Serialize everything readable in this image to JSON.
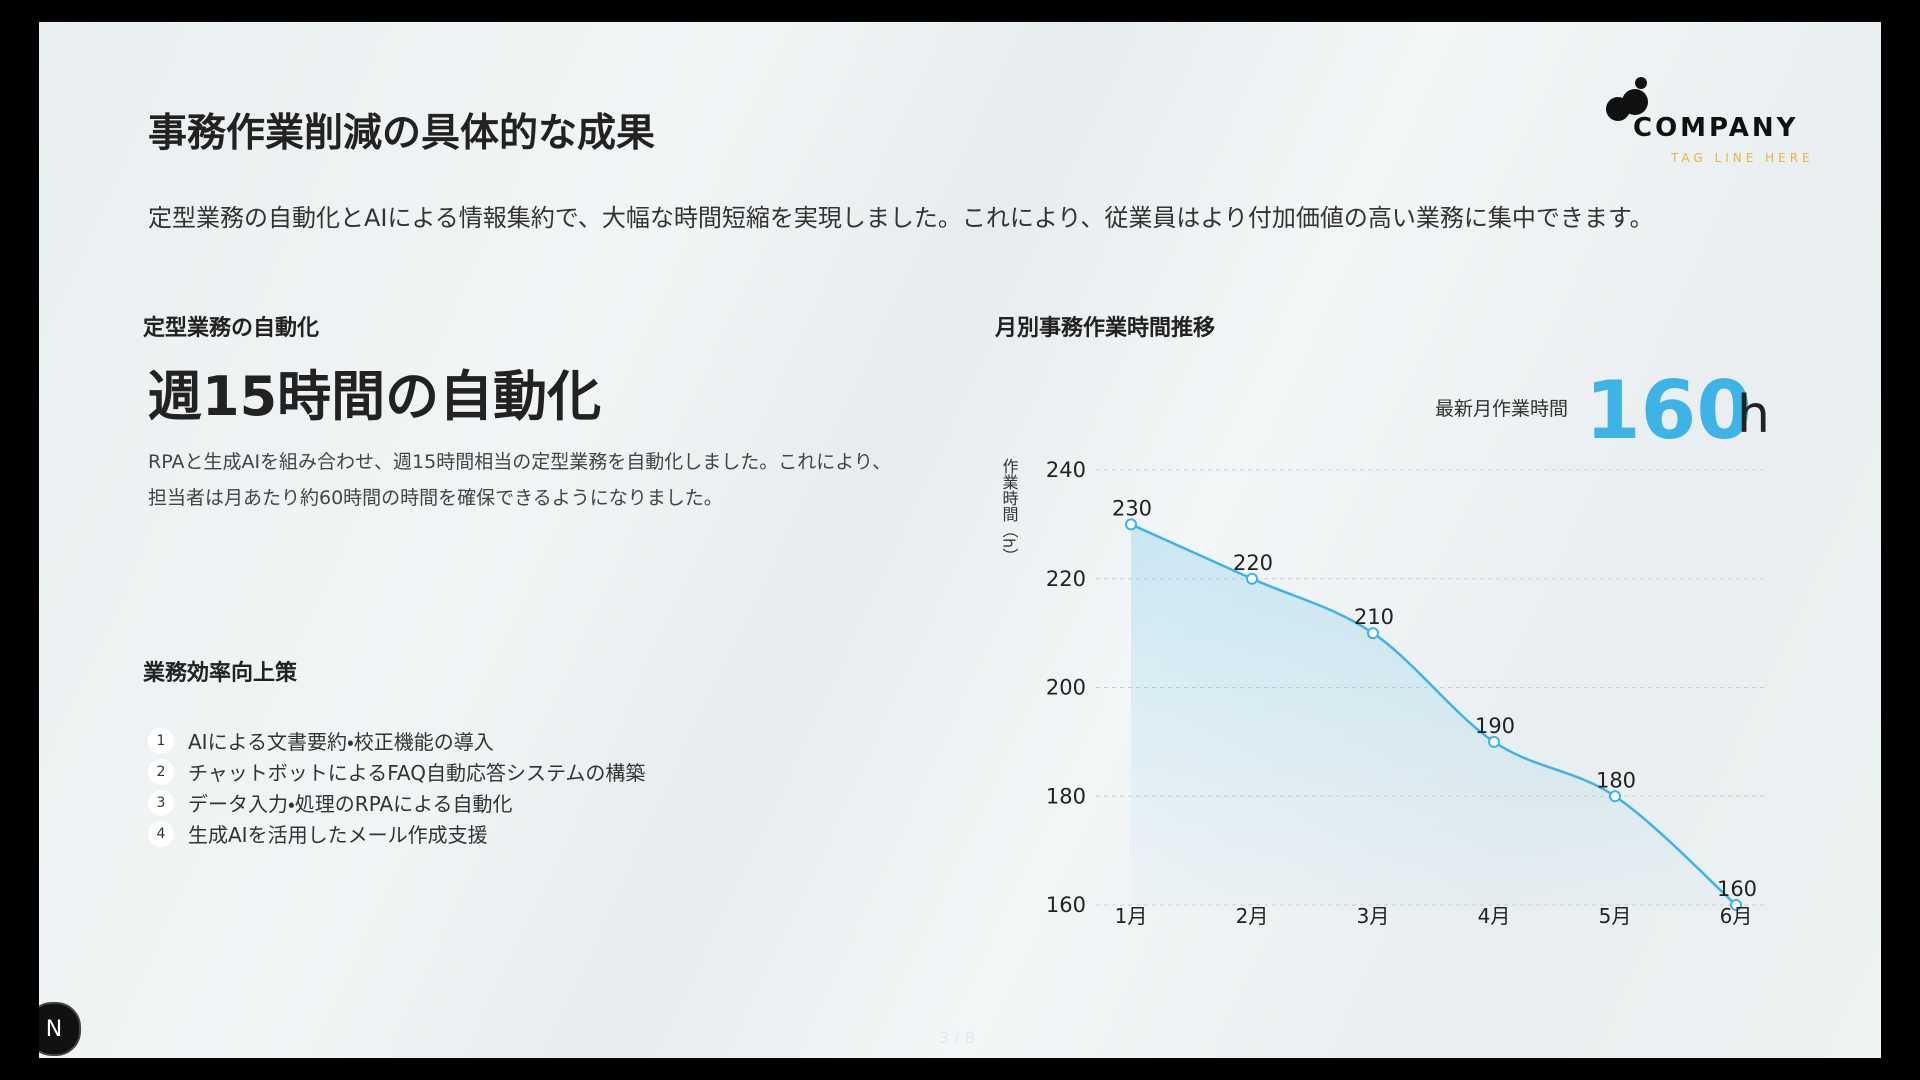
{
  "header": {
    "title": "事務作業削減の具体的な成果",
    "subtitle": "定型業務の自動化とAIによる情報集約で、大幅な時間短縮を実現しました。これにより、従業員はより付加価値の高い業務に集中できます。"
  },
  "logo": {
    "name": "COMPANY",
    "tagline": "TAG LINE HERE"
  },
  "automation": {
    "heading": "定型業務の自動化",
    "headline": "週15時間の自動化",
    "body": [
      "RPAと生成AIを組み合わせ、週15時間相当の定型業務を自動化しました。これにより、",
      "担当者は月あたり約60時間の時間を確保できるようになりました。"
    ]
  },
  "measures": {
    "heading": "業務効率向上策",
    "items": [
      {
        "number": "1",
        "text": "AIによる文書要約・校正機能の導入"
      },
      {
        "number": "2",
        "text": "チャットボットによるFAQ自動応答システムの構築"
      },
      {
        "number": "3",
        "text": "データ入力・処理のRPAによる自動化"
      },
      {
        "number": "4",
        "text": "生成AIを活用したメール作成支援"
      }
    ]
  },
  "kpi": {
    "label": "最新月作業時間",
    "value": 160,
    "unit": "h"
  },
  "chart_data": {
    "type": "line",
    "title": "月別事務作業時間推移",
    "y_label": "作業時間（h）",
    "categories": [
      "1月",
      "2月",
      "3月",
      "4月",
      "5月",
      "6月"
    ],
    "values": [
      230,
      220,
      210,
      190,
      180,
      160
    ],
    "color": "#3db3e6",
    "ylim": [
      160,
      240
    ],
    "yticks": [
      160,
      180,
      200,
      220,
      240
    ],
    "grid": true,
    "area": true
  },
  "page_indicator": "3 / 8",
  "nav_button": "N"
}
